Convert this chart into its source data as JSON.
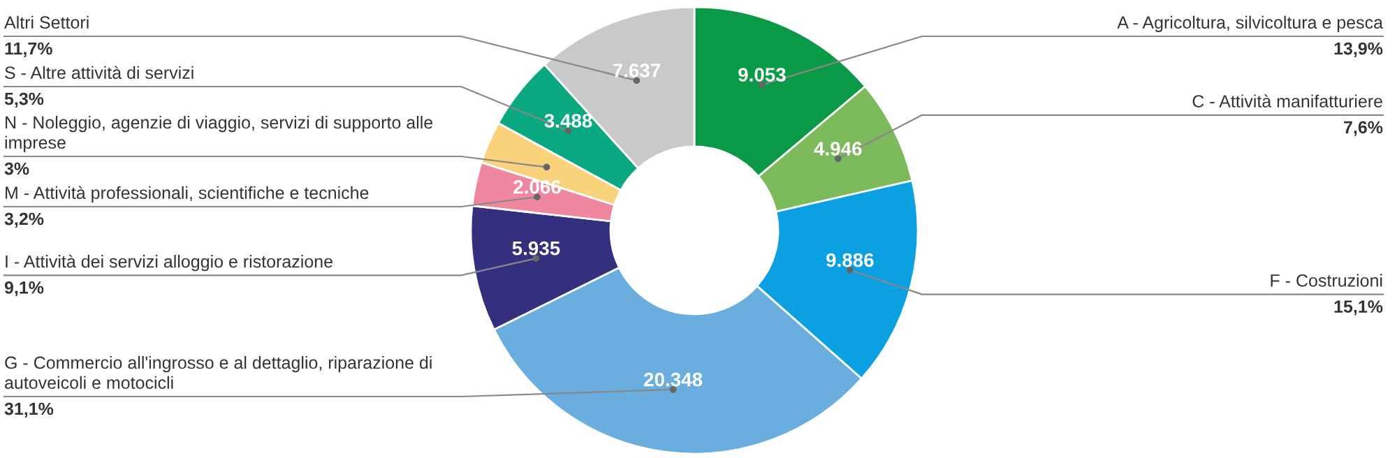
{
  "chart_data": {
    "type": "donut",
    "categories": [
      "A - Agricoltura, silvicoltura e pesca\n13,9%",
      "C - Attività manifatturiere\n7,6%",
      "F - Costruzioni\n15,1%",
      "G - Commercio all'ingrosso e al dettaglio, riparazione di\nautoveicoli e motocicli\n31,1%",
      "I - Attività dei servizi alloggio e ristorazione\n9,1%",
      "M - Attività professionali, scientifiche e tecniche\n3,2%",
      "N - Noleggio, agenzie di viaggio, servizi di supporto alle\nimprese\n3%",
      "S - Altre attività di servizi\n5,3%",
      "Altri Settori\n11,7%"
    ],
    "values": [
      9053,
      4946,
      9886,
      20348,
      5935,
      2066,
      2000,
      3488,
      7637
    ],
    "value_labels": [
      "9.053",
      "4.946",
      "9.886",
      "20.348",
      "5.935",
      "2.066",
      null,
      "3.488",
      "7.637"
    ],
    "colors": [
      "#0a9a47",
      "#7dba5b",
      "#0aa0e1",
      "#6aaee0",
      "#352f80",
      "#ee879f",
      "#fad27c",
      "#0aa981",
      "#c9c9c9"
    ]
  }
}
